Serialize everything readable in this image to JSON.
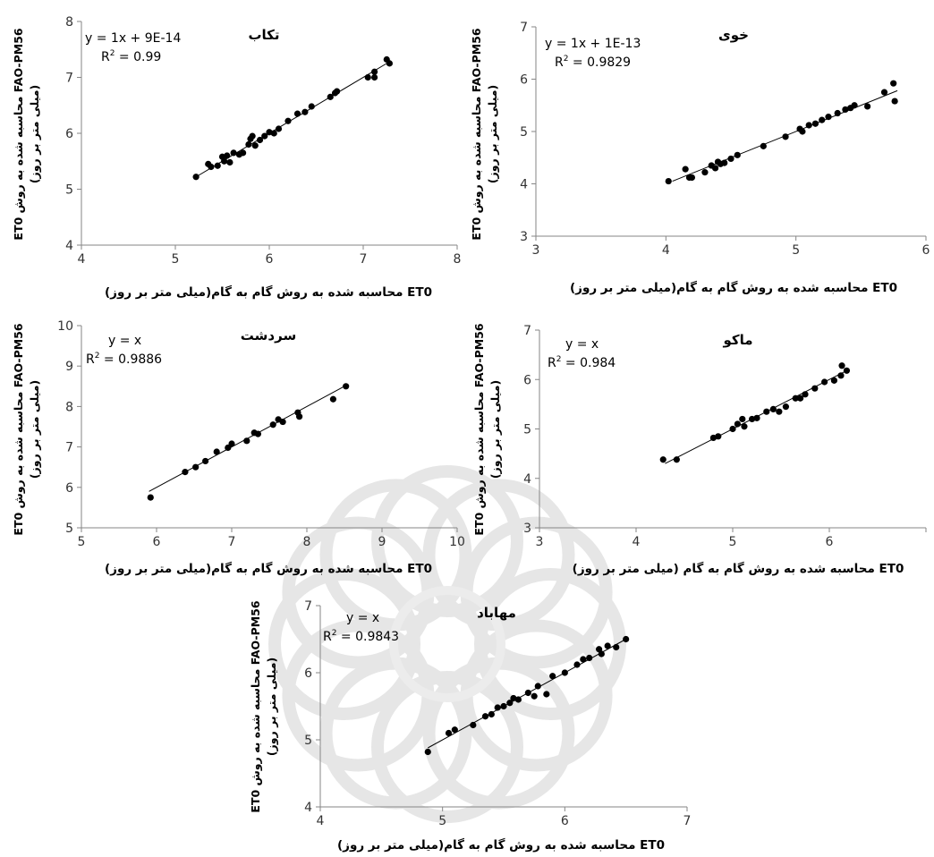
{
  "chart_data": [
    {
      "type": "scatter",
      "title": "تکاب",
      "equation": "y = 1x + 9E-14",
      "r2_label": "R",
      "r2_sup": "2",
      "r2_value": " = 0.99",
      "xlabel": "ET0 محاسبه شده به روش گام به گام(میلی متر بر روز)",
      "ylabel_line1": "FAO-PM56 محاسبه شده به روش ET0",
      "ylabel_line2": "(میلی متر بر روز)",
      "xlim": [
        4,
        8
      ],
      "ylim": [
        4,
        8
      ],
      "xticks": [
        "4",
        "5",
        "6",
        "7",
        "8"
      ],
      "yticks": [
        "4",
        "5",
        "6",
        "7",
        "8"
      ],
      "trendline": [
        [
          5.22,
          5.22
        ],
        [
          7.28,
          7.28
        ]
      ],
      "points": [
        [
          5.22,
          5.22
        ],
        [
          5.35,
          5.45
        ],
        [
          5.38,
          5.4
        ],
        [
          5.45,
          5.42
        ],
        [
          5.5,
          5.58
        ],
        [
          5.52,
          5.5
        ],
        [
          5.55,
          5.6
        ],
        [
          5.58,
          5.48
        ],
        [
          5.62,
          5.65
        ],
        [
          5.68,
          5.62
        ],
        [
          5.72,
          5.65
        ],
        [
          5.78,
          5.8
        ],
        [
          5.8,
          5.9
        ],
        [
          5.82,
          5.95
        ],
        [
          5.85,
          5.78
        ],
        [
          5.9,
          5.88
        ],
        [
          5.95,
          5.95
        ],
        [
          6.0,
          6.02
        ],
        [
          6.05,
          6.0
        ],
        [
          6.1,
          6.08
        ],
        [
          6.2,
          6.22
        ],
        [
          6.3,
          6.35
        ],
        [
          6.38,
          6.38
        ],
        [
          6.45,
          6.48
        ],
        [
          6.65,
          6.65
        ],
        [
          6.7,
          6.72
        ],
        [
          6.72,
          6.75
        ],
        [
          7.05,
          7.0
        ],
        [
          7.12,
          7.1
        ],
        [
          7.12,
          7.0
        ],
        [
          7.25,
          7.32
        ],
        [
          7.28,
          7.25
        ]
      ]
    },
    {
      "type": "scatter",
      "title": "خوی",
      "equation": "y = 1x + 1E-13",
      "r2_label": "R",
      "r2_sup": "2",
      "r2_value": " = 0.9829",
      "xlabel": "ET0 محاسبه شده به روش گام به گام(میلی متر بر روز)",
      "ylabel_line1": "FAO-PM56 محاسبه شده به روش ET0",
      "ylabel_line2": "(میلی متر بر روز)",
      "xlim": [
        3,
        6
      ],
      "ylim": [
        3,
        7
      ],
      "xticks": [
        "3",
        "4",
        "5",
        "6"
      ],
      "yticks": [
        "3",
        "4",
        "5",
        "6",
        "7"
      ],
      "trendline": [
        [
          4.05,
          4.05
        ],
        [
          5.78,
          5.78
        ]
      ],
      "points": [
        [
          4.02,
          4.05
        ],
        [
          4.15,
          4.28
        ],
        [
          4.18,
          4.12
        ],
        [
          4.2,
          4.12
        ],
        [
          4.3,
          4.22
        ],
        [
          4.35,
          4.35
        ],
        [
          4.38,
          4.3
        ],
        [
          4.4,
          4.42
        ],
        [
          4.42,
          4.38
        ],
        [
          4.45,
          4.4
        ],
        [
          4.5,
          4.48
        ],
        [
          4.55,
          4.55
        ],
        [
          4.75,
          4.72
        ],
        [
          4.92,
          4.9
        ],
        [
          5.03,
          5.05
        ],
        [
          5.05,
          5.0
        ],
        [
          5.1,
          5.12
        ],
        [
          5.15,
          5.15
        ],
        [
          5.2,
          5.22
        ],
        [
          5.25,
          5.28
        ],
        [
          5.32,
          5.35
        ],
        [
          5.38,
          5.42
        ],
        [
          5.42,
          5.45
        ],
        [
          5.45,
          5.5
        ],
        [
          5.55,
          5.48
        ],
        [
          5.68,
          5.75
        ],
        [
          5.75,
          5.92
        ],
        [
          5.76,
          5.58
        ]
      ]
    },
    {
      "type": "scatter",
      "title": "سردشت",
      "equation": "y = x",
      "r2_label": "R",
      "r2_sup": "2",
      "r2_value": " = 0.9886",
      "xlabel": "ET0 محاسبه شده به روش گام به گام(میلی متر بر روز)",
      "ylabel_line1": "FAO-PM56 محاسبه شده به روش ET0",
      "ylabel_line2": "(میلی متر بر روز)",
      "xlim": [
        5,
        10
      ],
      "ylim": [
        5,
        10
      ],
      "xticks": [
        "5",
        "6",
        "7",
        "8",
        "9",
        "10"
      ],
      "yticks": [
        "5",
        "6",
        "7",
        "8",
        "9",
        "10"
      ],
      "trendline": [
        [
          5.9,
          5.9
        ],
        [
          8.55,
          8.55
        ]
      ],
      "points": [
        [
          5.92,
          5.75
        ],
        [
          6.38,
          6.38
        ],
        [
          6.52,
          6.5
        ],
        [
          6.65,
          6.65
        ],
        [
          6.8,
          6.88
        ],
        [
          6.95,
          6.98
        ],
        [
          7.0,
          7.08
        ],
        [
          7.2,
          7.15
        ],
        [
          7.3,
          7.35
        ],
        [
          7.35,
          7.32
        ],
        [
          7.55,
          7.55
        ],
        [
          7.62,
          7.68
        ],
        [
          7.68,
          7.62
        ],
        [
          7.88,
          7.85
        ],
        [
          7.9,
          7.75
        ],
        [
          8.35,
          8.18
        ],
        [
          8.52,
          8.5
        ]
      ]
    },
    {
      "type": "scatter",
      "title": "ماکو",
      "equation": "y = x",
      "r2_label": "R",
      "r2_sup": "2",
      "r2_value": " = 0.984",
      "xlabel": "ET0 محاسبه شده به روش گام به گام (میلی متر بر روز)",
      "ylabel_line1": "FAO-PM56 محاسبه شده به روش ET0",
      "ylabel_line2": "(میلی متر بر روز)",
      "xlim": [
        3,
        7
      ],
      "ylim": [
        3,
        7
      ],
      "xticks": [
        "3",
        "4",
        "5",
        "6",
        ""
      ],
      "yticks": [
        "3",
        "4",
        "5",
        "6",
        "7"
      ],
      "trendline": [
        [
          4.3,
          4.3
        ],
        [
          6.2,
          6.2
        ]
      ],
      "points": [
        [
          4.28,
          4.38
        ],
        [
          4.42,
          4.38
        ],
        [
          4.8,
          4.82
        ],
        [
          4.85,
          4.85
        ],
        [
          5.0,
          5.0
        ],
        [
          5.05,
          5.1
        ],
        [
          5.1,
          5.2
        ],
        [
          5.12,
          5.05
        ],
        [
          5.2,
          5.2
        ],
        [
          5.25,
          5.22
        ],
        [
          5.35,
          5.35
        ],
        [
          5.42,
          5.4
        ],
        [
          5.48,
          5.35
        ],
        [
          5.55,
          5.45
        ],
        [
          5.65,
          5.62
        ],
        [
          5.7,
          5.62
        ],
        [
          5.75,
          5.7
        ],
        [
          5.85,
          5.82
        ],
        [
          5.95,
          5.95
        ],
        [
          6.05,
          5.98
        ],
        [
          6.12,
          6.08
        ],
        [
          6.13,
          6.28
        ],
        [
          6.18,
          6.18
        ]
      ]
    },
    {
      "type": "scatter",
      "title": "مهاباد",
      "equation": "y = x",
      "r2_label": "R",
      "r2_sup": "2",
      "r2_value": " = 0.9843",
      "xlabel": "ET0 محاسبه شده به روش گام به گام(میلی متر بر روز)",
      "ylabel_line1": "FAO-PM56 محاسبه شده به روش ET0",
      "ylabel_line2": "(میلی متر بر روز)",
      "xlim": [
        4,
        7
      ],
      "ylim": [
        4,
        7
      ],
      "xticks": [
        "4",
        "5",
        "6",
        "7"
      ],
      "yticks": [
        "4",
        "5",
        "6",
        "7"
      ],
      "trendline": [
        [
          4.88,
          4.88
        ],
        [
          6.5,
          6.5
        ]
      ],
      "points": [
        [
          4.88,
          4.82
        ],
        [
          5.05,
          5.1
        ],
        [
          5.1,
          5.15
        ],
        [
          5.25,
          5.22
        ],
        [
          5.35,
          5.35
        ],
        [
          5.4,
          5.38
        ],
        [
          5.45,
          5.48
        ],
        [
          5.5,
          5.5
        ],
        [
          5.55,
          5.55
        ],
        [
          5.58,
          5.62
        ],
        [
          5.62,
          5.6
        ],
        [
          5.7,
          5.7
        ],
        [
          5.75,
          5.65
        ],
        [
          5.78,
          5.8
        ],
        [
          5.85,
          5.68
        ],
        [
          5.9,
          5.95
        ],
        [
          6.0,
          6.0
        ],
        [
          6.1,
          6.12
        ],
        [
          6.15,
          6.2
        ],
        [
          6.2,
          6.22
        ],
        [
          6.28,
          6.35
        ],
        [
          6.3,
          6.28
        ],
        [
          6.35,
          6.4
        ],
        [
          6.42,
          6.38
        ],
        [
          6.5,
          6.5
        ]
      ]
    }
  ]
}
